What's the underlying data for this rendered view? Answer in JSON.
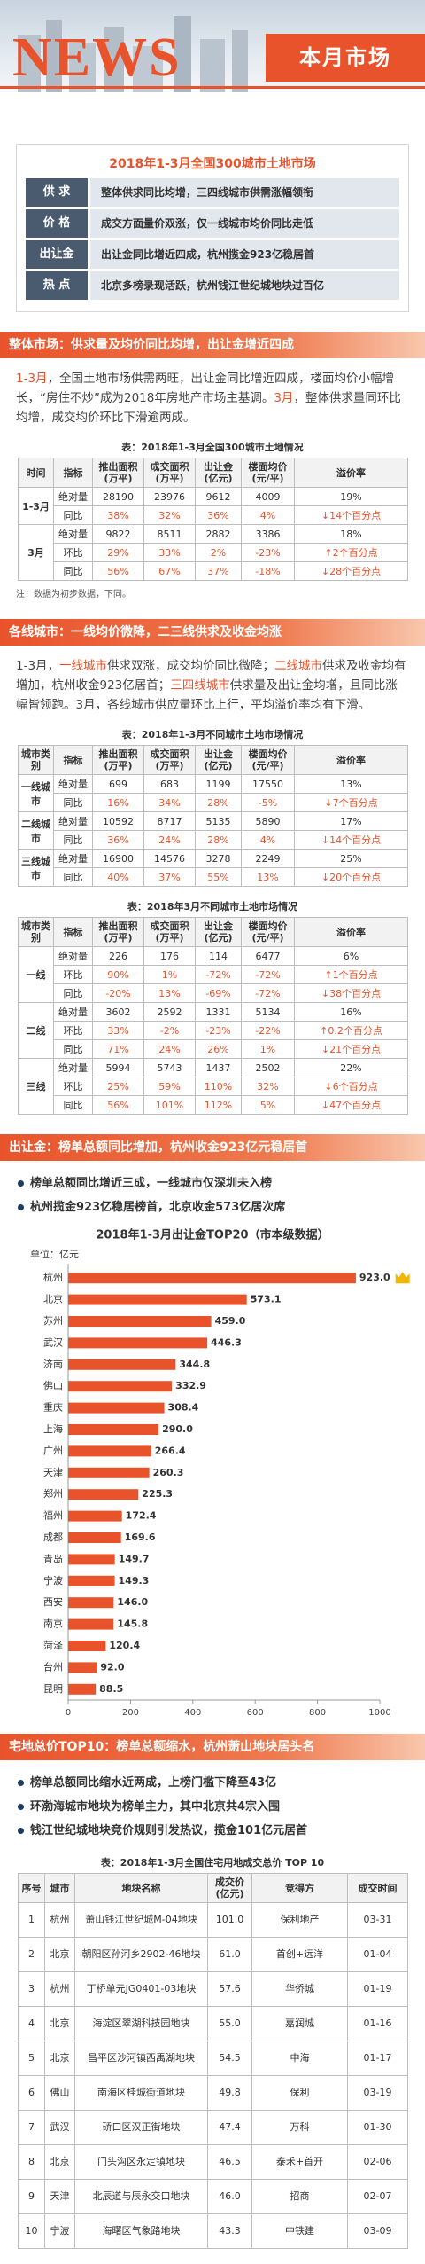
{
  "header": {
    "logo": "NEWS",
    "title": "本月市场"
  },
  "summary": {
    "title": "2018年1-3月全国300城市土地市场",
    "rows": [
      {
        "label": "供 求",
        "text": "整体供求同比均增，三四线城市供需涨幅领衔"
      },
      {
        "label": "价 格",
        "text": "成交方面量价双涨，仅一线城市均价同比走低"
      },
      {
        "label": "出让金",
        "text": "出让金同比增近四成，杭州揽金923亿稳居首"
      },
      {
        "label": "热 点",
        "text": "北京多榜录现活跃，杭州钱江世纪城地块过百亿"
      }
    ]
  },
  "overall": {
    "heading": "整体市场：供求量及均价同比均增，出让金增近四成",
    "paragraph": [
      {
        "text": "1-3月",
        "color": "#e9532b"
      },
      "，全国土地市场供需两旺，出让金同比增近四成，楼面均价小幅增长，“房住不炒”成为2018年房地产市场主基调。",
      {
        "text": "3月",
        "color": "#e9532b"
      },
      "，整体供求量同环比均增，成交均价环比下滑逾两成。"
    ],
    "table": {
      "title": "表：2018年1-3月全国300城市土地情况",
      "header": [
        [
          "时间"
        ],
        [
          "指标"
        ],
        [
          "推出面积",
          "(万平)"
        ],
        [
          "成交面积",
          "(万平)"
        ],
        [
          "出让金",
          "(亿元)"
        ],
        [
          "楼面均价",
          "(元/平)"
        ],
        [
          "溢价率"
        ]
      ],
      "groups": [
        {
          "label": "1-3月",
          "rows": [
            [
              "绝对量",
              "28190",
              "23976",
              "9612",
              "4009",
              "19%"
            ],
            [
              "同比",
              "38%",
              "32%",
              "36%",
              "4%",
              "↓14个百分点"
            ]
          ]
        },
        {
          "label": "3月",
          "rows": [
            [
              "绝对量",
              "9822",
              "8511",
              "2882",
              "3386",
              "18%"
            ],
            [
              "环比",
              "29%",
              "33%",
              "2%",
              "-23%",
              "↑2个百分点"
            ],
            [
              "同比",
              "56%",
              "67%",
              "37%",
              "-18%",
              "↓28个百分点"
            ]
          ]
        }
      ]
    },
    "note": "注：数据为初步数据，下同。"
  },
  "tiers": {
    "heading": "各线城市：一线均价微降，二三线供求及收金均涨",
    "paragraph": [
      "1-3月，",
      {
        "text": "一线城市",
        "color": "#e9532b"
      },
      "供求双涨，成交均价同比微降；",
      {
        "text": "二线城市",
        "color": "#e9532b"
      },
      "供求及收金均有增加，杭州收金923亿居首；",
      {
        "text": "三四线城市",
        "color": "#e9532b"
      },
      "供求量及出让金均增，且同比涨幅皆领跑。3月，各线城市供应量环比上行，平均溢价率均有下滑。"
    ],
    "tables": [
      {
        "title": "表：2018年1-3月不同城市土地市场情况",
        "header": [
          [
            "城市类别"
          ],
          [
            "指标"
          ],
          [
            "推出面积",
            "(万平)"
          ],
          [
            "成交面积",
            "(万平)"
          ],
          [
            "出让金",
            "(亿元)"
          ],
          [
            "楼面均价",
            "(元/平)"
          ],
          [
            "溢价率"
          ]
        ],
        "groups": [
          {
            "label": "一线城市",
            "rows": [
              [
                "绝对量",
                "699",
                "683",
                "1199",
                "17550",
                "13%"
              ],
              [
                "同比",
                "16%",
                "34%",
                "28%",
                "-5%",
                "↓7个百分点"
              ]
            ]
          },
          {
            "label": "二线城市",
            "rows": [
              [
                "绝对量",
                "10592",
                "8717",
                "5135",
                "5890",
                "17%"
              ],
              [
                "同比",
                "36%",
                "24%",
                "28%",
                "4%",
                "↓14个百分点"
              ]
            ]
          },
          {
            "label": "三线城市",
            "rows": [
              [
                "绝对量",
                "16900",
                "14576",
                "3278",
                "2249",
                "25%"
              ],
              [
                "同比",
                "40%",
                "37%",
                "55%",
                "13%",
                "↓20个百分点"
              ]
            ]
          }
        ]
      },
      {
        "title": "表：2018年3月不同城市土地市场情况",
        "header": [
          [
            "城市类别"
          ],
          [
            "指标"
          ],
          [
            "推出面积",
            "(万平)"
          ],
          [
            "成交面积",
            "(万平)"
          ],
          [
            "出让金",
            "(亿元)"
          ],
          [
            "楼面均价",
            "(元/平)"
          ],
          [
            "溢价率"
          ]
        ],
        "groups": [
          {
            "label": "一线",
            "rows": [
              [
                "绝对量",
                "226",
                "176",
                "114",
                "6477",
                "6%"
              ],
              [
                "环比",
                "90%",
                "1%",
                "-72%",
                "-72%",
                "↑1个百分点"
              ],
              [
                "同比",
                "-20%",
                "13%",
                "-69%",
                "-72%",
                "↓38个百分点"
              ]
            ]
          },
          {
            "label": "二线",
            "rows": [
              [
                "绝对量",
                "3602",
                "2592",
                "1331",
                "5134",
                "16%"
              ],
              [
                "环比",
                "33%",
                "-2%",
                "-23%",
                "-22%",
                "↑0.2个百分点"
              ],
              [
                "同比",
                "71%",
                "24%",
                "26%",
                "1%",
                "↓21个百分点"
              ]
            ]
          },
          {
            "label": "三线",
            "rows": [
              [
                "绝对量",
                "5994",
                "5743",
                "1437",
                "2502",
                "22%"
              ],
              [
                "环比",
                "25%",
                "59%",
                "110%",
                "32%",
                "↓6个百分点"
              ],
              [
                "同比",
                "56%",
                "101%",
                "112%",
                "5%",
                "↓47个百分点"
              ]
            ]
          }
        ]
      }
    ]
  },
  "land_revenue": {
    "heading": "出让金：榜单总额同比增加，杭州收金923亿元稳居首",
    "bullets": [
      "榜单总额同比增近三成，一线城市仅深圳未入榜",
      "杭州揽金923亿稳居榜首，北京收金573亿居次席"
    ]
  },
  "chart_data": {
    "type": "bar",
    "orientation": "horizontal",
    "title": "2018年1-3月出让金TOP20（市本级数据）",
    "unit": "单位：亿元",
    "categories": [
      "杭州",
      "北京",
      "苏州",
      "武汉",
      "济南",
      "佛山",
      "重庆",
      "上海",
      "广州",
      "天津",
      "郑州",
      "福州",
      "成都",
      "青岛",
      "宁波",
      "西安",
      "南京",
      "菏泽",
      "台州",
      "昆明"
    ],
    "values": [
      923.0,
      573.1,
      459.0,
      446.3,
      344.8,
      332.9,
      308.4,
      290.0,
      266.4,
      260.3,
      225.3,
      172.4,
      169.6,
      149.7,
      149.3,
      146.0,
      145.8,
      120.4,
      92.0,
      88.5
    ],
    "value_labels": [
      "923.0",
      "573.1",
      "459.0",
      "446.3",
      "344.8",
      "332.9",
      "308.4",
      "290.0",
      "266.4",
      "260.3",
      "225.3",
      "172.4",
      "169.6",
      "149.7",
      "149.3",
      "146.0",
      "145.8",
      "120.4",
      "92.0",
      "88.5"
    ],
    "color": "#e9532b",
    "xlim": [
      0,
      1000
    ],
    "xticks": [
      0,
      200,
      400,
      600,
      800,
      1000
    ],
    "grid": false
  },
  "top10": {
    "heading": "宅地总价TOP10：榜单总额缩水，杭州萧山地块居头名",
    "bullets": [
      "榜单总额同比缩水近两成，上榜门槛下降至43亿",
      "环渤海城市地块为榜单主力，其中北京共4宗入围",
      "钱江世纪城地块竞价规则引发热议，揽金101亿元居首"
    ],
    "table": {
      "title": "表：2018年1-3月全国住宅用地成交总价 TOP 10",
      "header": [
        [
          "序号"
        ],
        [
          "城市"
        ],
        [
          "地块名称"
        ],
        [
          "成交价",
          "(亿元)"
        ],
        [
          "竞得方"
        ],
        [
          "成交时间"
        ]
      ],
      "rows": [
        [
          "1",
          "杭州",
          "萧山钱江世纪城M-04地块",
          "101.0",
          "保利地产",
          "03-31"
        ],
        [
          "2",
          "北京",
          "朝阳区孙河乡2902-46地块",
          "61.0",
          "首创+远洋",
          "01-04"
        ],
        [
          "3",
          "杭州",
          "丁桥单元JG0401-03地块",
          "57.6",
          "华侨城",
          "01-19"
        ],
        [
          "4",
          "北京",
          "海淀区翠湖科技园地块",
          "55.0",
          "嘉润城",
          "01-16"
        ],
        [
          "5",
          "北京",
          "昌平区沙河镇西禹湖地块",
          "54.5",
          "中海",
          "01-17"
        ],
        [
          "6",
          "佛山",
          "南海区桂城街道地块",
          "49.8",
          "保利",
          "03-19"
        ],
        [
          "7",
          "武汉",
          "硚口区汉正街地块",
          "47.4",
          "万科",
          "01-30"
        ],
        [
          "8",
          "北京",
          "门头沟区永定镇地块",
          "46.5",
          "泰禾+首开",
          "02-06"
        ],
        [
          "9",
          "天津",
          "北辰道与辰永交口地块",
          "46.0",
          "招商",
          "02-07"
        ],
        [
          "10",
          "宁波",
          "海曙区气象路地块",
          "43.3",
          "中铁建",
          "03-09"
        ]
      ]
    }
  }
}
